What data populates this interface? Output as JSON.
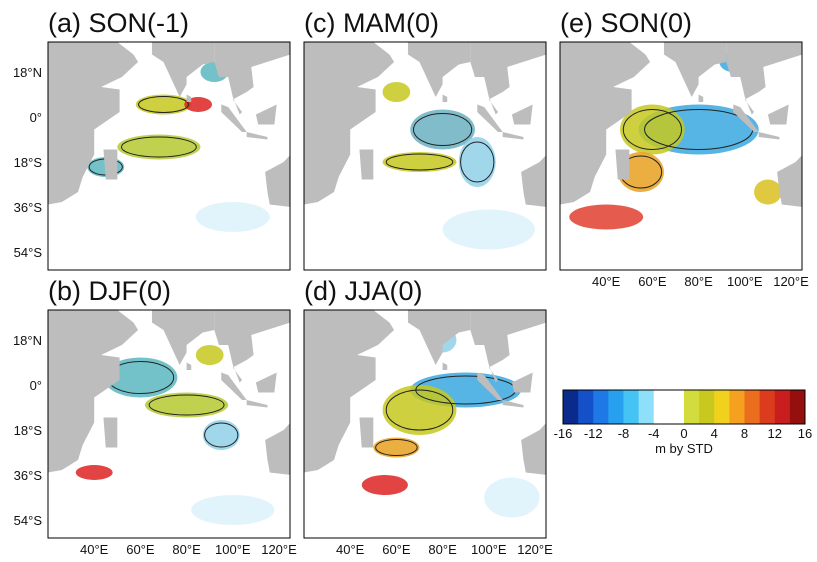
{
  "panels": [
    {
      "title": "(a) SON(-1)"
    },
    {
      "title": "(c) MAM(0)"
    },
    {
      "title": "(e) SON(0)"
    },
    {
      "title": "(b) DJF(0)"
    },
    {
      "title": "(d) JJA(0)"
    }
  ],
  "lat_labels": [
    "18°N",
    "0°",
    "18°S",
    "36°S",
    "54°S"
  ],
  "lon_labels": [
    "40°E",
    "60°E",
    "80°E",
    "100°E",
    "120°E"
  ],
  "colorbar": {
    "ticks": [
      "-16",
      "-12",
      "-8",
      "-4",
      "0",
      "4",
      "8",
      "12",
      "16"
    ],
    "label": "m by STD"
  }
}
